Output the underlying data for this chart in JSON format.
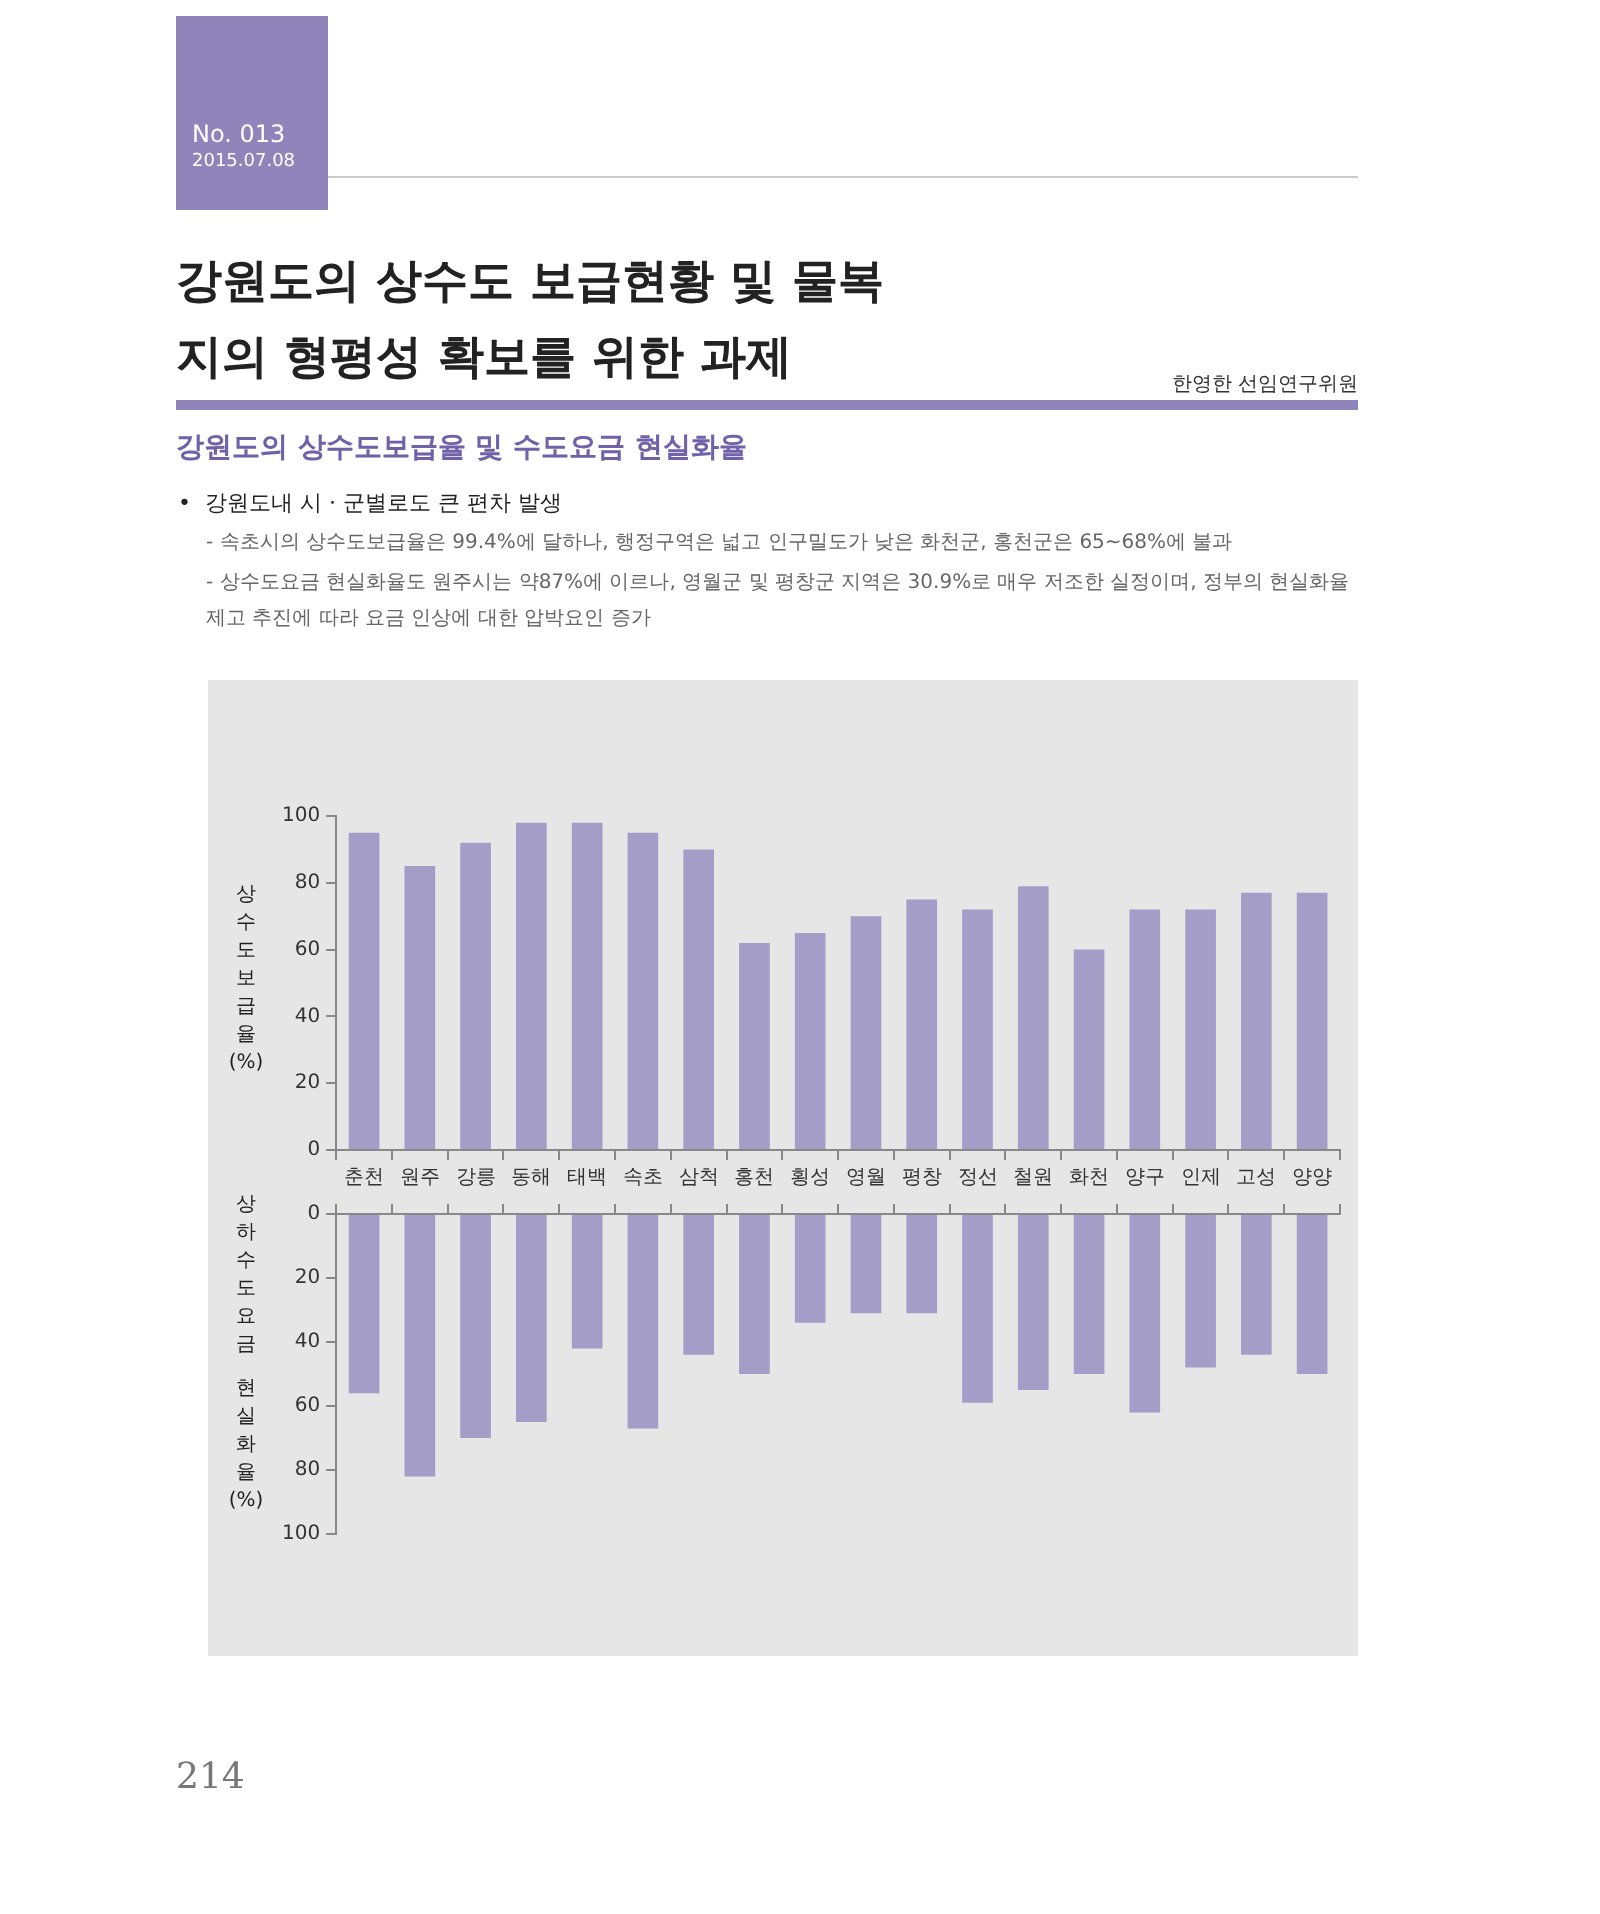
{
  "chart_data": [
    {
      "type": "bar",
      "title": "강원도의 상수도 보급현황 및 물복지의 형평성 확보를 위한 과제",
      "subtitle": "강원도의 상수도보급율 및 수도요금 현실화율",
      "annotations": [
        "No. 013",
        "2015.07.08",
        "한영한 선임연구위원",
        "•  강원도내 시 · 군별로도 큰 편차 발생",
        "- 속초시의 상수도보급율은 99.4%에 달하나, 행정구역은 넓고 인구밀도가 낮은 화천군, 홍천군은 65~68%에 불과",
        "- 상수도요금 현실화율도 원주시는 약87%에 이르나, 영월군 및 평창군 지역은 30.9%로 매우 저조한 실정이며, 정부의 현실화율 제고 추진에 따라 요금 인상에 대한 압박요인 증가",
        "214"
      ],
      "ylabel": "상수도보급율 (%)",
      "categories": [
        "춘천",
        "원주",
        "강릉",
        "동해",
        "태백",
        "속초",
        "삼척",
        "홍천",
        "횡성",
        "영월",
        "평창",
        "정선",
        "철원",
        "화천",
        "양구",
        "인제",
        "고성",
        "양양"
      ],
      "values": [
        95,
        85,
        92,
        98,
        98,
        95,
        90,
        62,
        65,
        70,
        75,
        72,
        79,
        60,
        72,
        72,
        77,
        77
      ],
      "color": "#a49dc8",
      "ylim": [
        0,
        100
      ],
      "yticks": [
        0,
        20,
        40,
        60,
        80,
        100
      ],
      "grid": false
    },
    {
      "type": "bar",
      "ylabel": "상하수도요금 현실화율 (%)",
      "categories": [
        null,
        null,
        null,
        null,
        null,
        null,
        null,
        null,
        null,
        null,
        null,
        null,
        null,
        null,
        null,
        null,
        null,
        null
      ],
      "values": [
        56,
        82,
        70,
        65,
        42,
        67,
        44,
        50,
        34,
        31,
        31,
        59,
        55,
        50,
        62,
        48,
        44,
        50
      ],
      "color": "#a49dc8",
      "ylim": [
        100,
        0
      ],
      "yticks": [
        0,
        20,
        40,
        60,
        80,
        100
      ],
      "grid": false,
      "tick_labels": "y"
    }
  ]
}
